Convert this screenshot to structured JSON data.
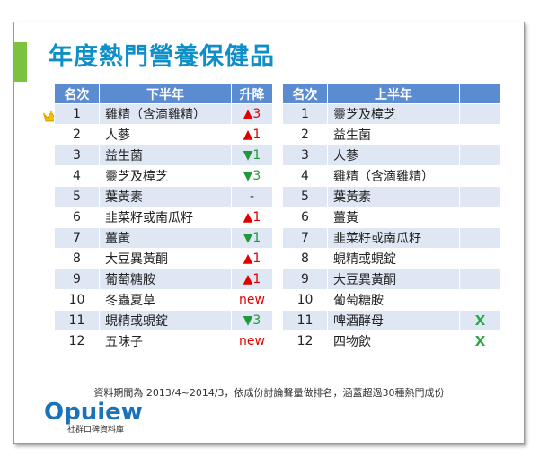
{
  "title": "年度熱門營養保健品",
  "headers": {
    "left": [
      "名次",
      "下半年",
      "升降"
    ],
    "right": [
      "名次",
      "上半年",
      ""
    ]
  },
  "left_rows": [
    {
      "rank": "1",
      "name": "雞精（含滴雞精）",
      "change": "▲3",
      "type": "up"
    },
    {
      "rank": "2",
      "name": "人蔘",
      "change": "▲1",
      "type": "up"
    },
    {
      "rank": "3",
      "name": "益生菌",
      "change": "▼1",
      "type": "down"
    },
    {
      "rank": "4",
      "name": "靈芝及樟芝",
      "change": "▼3",
      "type": "down"
    },
    {
      "rank": "5",
      "name": "葉黃素",
      "change": "-",
      "type": "flat"
    },
    {
      "rank": "6",
      "name": "韭菜籽或南瓜籽",
      "change": "▲1",
      "type": "up"
    },
    {
      "rank": "7",
      "name": "薑黃",
      "change": "▼1",
      "type": "down"
    },
    {
      "rank": "8",
      "name": "大豆異黃酮",
      "change": "▲1",
      "type": "up"
    },
    {
      "rank": "9",
      "name": "葡萄糖胺",
      "change": "▲1",
      "type": "up"
    },
    {
      "rank": "10",
      "name": "冬蟲夏草",
      "change": "new",
      "type": "new"
    },
    {
      "rank": "11",
      "name": "蜆精或蜆錠",
      "change": "▼3",
      "type": "down"
    },
    {
      "rank": "12",
      "name": "五味子",
      "change": "new",
      "type": "new"
    }
  ],
  "right_rows": [
    {
      "rank": "1",
      "name": "靈芝及樟芝",
      "mark": ""
    },
    {
      "rank": "2",
      "name": "益生菌",
      "mark": ""
    },
    {
      "rank": "3",
      "name": "人蔘",
      "mark": ""
    },
    {
      "rank": "4",
      "name": "雞精（含滴雞精）",
      "mark": ""
    },
    {
      "rank": "5",
      "name": "葉黃素",
      "mark": ""
    },
    {
      "rank": "6",
      "name": "薑黃",
      "mark": ""
    },
    {
      "rank": "7",
      "name": "韭菜籽或南瓜籽",
      "mark": ""
    },
    {
      "rank": "8",
      "name": "蜆精或蜆錠",
      "mark": ""
    },
    {
      "rank": "9",
      "name": "大豆異黃酮",
      "mark": ""
    },
    {
      "rank": "10",
      "name": "葡萄糖胺",
      "mark": ""
    },
    {
      "rank": "11",
      "name": "啤酒酵母",
      "mark": "X"
    },
    {
      "rank": "12",
      "name": "四物飲",
      "mark": "X"
    }
  ],
  "note": "資料期間為 2013/4~2014/3，依成份討論聲量做排名，涵蓋超過30種熱門成份",
  "logo": {
    "word": "Opuiew",
    "sub": "社群口碑資料庫"
  },
  "colors": {
    "title": "#0f8fc7",
    "header_bg": "#5b8bd0",
    "row_alt": "#dfe6f4",
    "up": "#e00000",
    "down": "#1e9a3a",
    "accent": "#7dc23f"
  },
  "icons": {
    "top_rank": "crown-icon"
  }
}
